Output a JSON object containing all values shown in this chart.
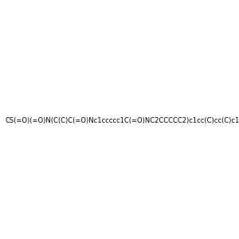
{
  "smiles": "CS(=O)(=O)N(C(C)C(=O)Nc1ccccc1C(=O)NC2CCCCC2)c1cc(C)cc(C)c1",
  "image_size": 300,
  "background_color": "#f0f0f0"
}
